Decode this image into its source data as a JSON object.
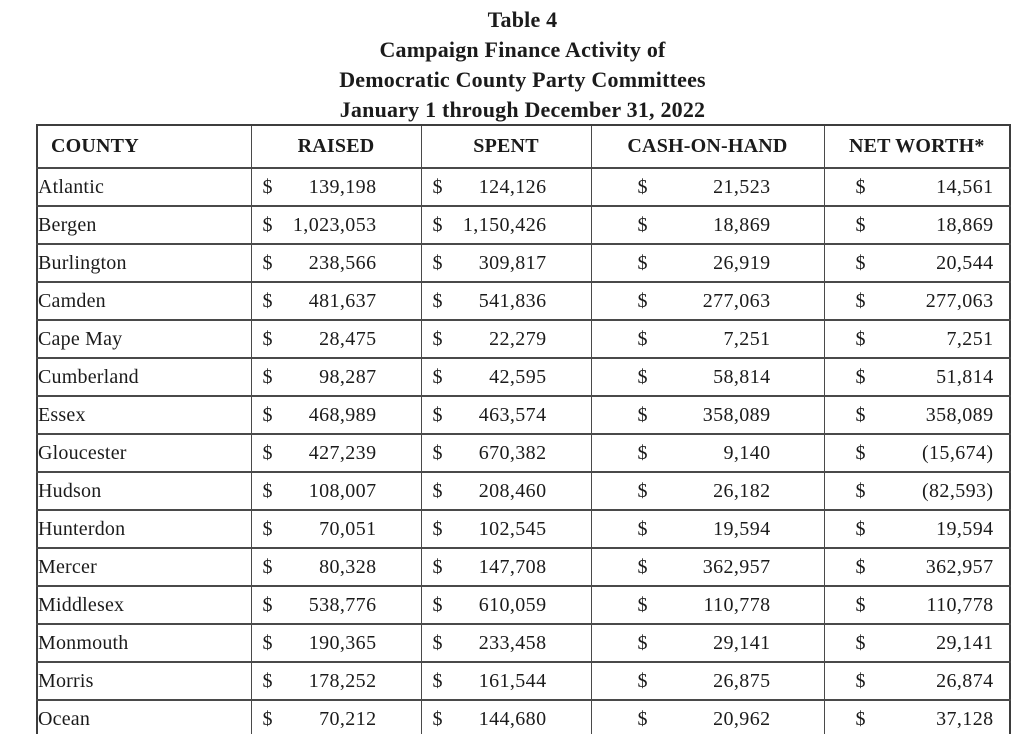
{
  "title": {
    "line1": "Table 4",
    "line2": "Campaign Finance Activity of",
    "line3": "Democratic County Party Committees",
    "line4": "January 1 through December 31, 2022"
  },
  "table": {
    "currency_symbol": "$",
    "headers": [
      "COUNTY",
      "RAISED",
      "SPENT",
      "CASH-ON-HAND",
      "NET WORTH*"
    ],
    "rows": [
      [
        "Atlantic",
        "139,198",
        "124,126",
        "21,523",
        "14,561"
      ],
      [
        "Bergen",
        "1,023,053",
        "1,150,426",
        "18,869",
        "18,869"
      ],
      [
        "Burlington",
        "238,566",
        "309,817",
        "26,919",
        "20,544"
      ],
      [
        "Camden",
        "481,637",
        "541,836",
        "277,063",
        "277,063"
      ],
      [
        "Cape May",
        "28,475",
        "22,279",
        "7,251",
        "7,251"
      ],
      [
        "Cumberland",
        "98,287",
        "42,595",
        "58,814",
        "51,814"
      ],
      [
        "Essex",
        "468,989",
        "463,574",
        "358,089",
        "358,089"
      ],
      [
        "Gloucester",
        "427,239",
        "670,382",
        "9,140",
        "(15,674)"
      ],
      [
        "Hudson",
        "108,007",
        "208,460",
        "26,182",
        "(82,593)"
      ],
      [
        "Hunterdon",
        "70,051",
        "102,545",
        "19,594",
        "19,594"
      ],
      [
        "Mercer",
        "80,328",
        "147,708",
        "362,957",
        "362,957"
      ],
      [
        "Middlesex",
        "538,776",
        "610,059",
        "110,778",
        "110,778"
      ],
      [
        "Monmouth",
        "190,365",
        "233,458",
        "29,141",
        "29,141"
      ],
      [
        "Morris",
        "178,252",
        "161,544",
        "26,875",
        "26,874"
      ],
      [
        "Ocean",
        "70,212",
        "144,680",
        "20,962",
        "37,128"
      ]
    ]
  },
  "colors": {
    "text": "#1b1b1b",
    "border": "#4a4a4a",
    "background": "#ffffff"
  }
}
